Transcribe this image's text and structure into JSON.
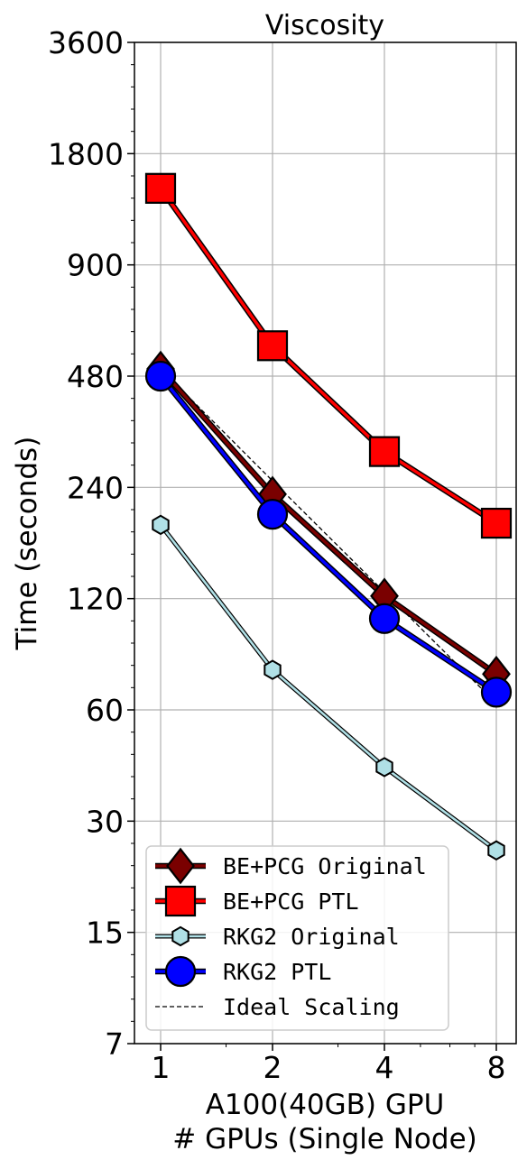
{
  "chart_data": {
    "type": "line",
    "title": "Viscosity",
    "xlabel_lines": [
      "A100(40GB) GPU",
      "# GPUs (Single Node)"
    ],
    "ylabel": "Time (seconds)",
    "x": [
      1,
      2,
      4,
      8
    ],
    "x_tick_labels": [
      "1",
      "2",
      "4",
      "8"
    ],
    "x_scale": "log2",
    "y_scale": "log",
    "y_ticks": [
      7,
      15,
      30,
      60,
      120,
      240,
      480,
      900,
      1800,
      3600
    ],
    "y_tick_labels": [
      "7",
      "15",
      "30",
      "60",
      "120",
      "240",
      "480",
      "900",
      "1800",
      "3600"
    ],
    "ylim": [
      7,
      3600
    ],
    "grid": true,
    "legend_position": "lower-left",
    "series": [
      {
        "name": "BE+PCG Original",
        "values": [
          500,
          230,
          122,
          75
        ],
        "color": "#7a0000",
        "marker": "diamond"
      },
      {
        "name": "BE+PCG PTL",
        "values": [
          1450,
          570,
          300,
          192
        ],
        "color": "#ff0000",
        "marker": "square"
      },
      {
        "name": "RKG2 Original",
        "values": [
          190,
          77,
          42,
          25
        ],
        "color": "#b0e0e6",
        "marker": "hexagon"
      },
      {
        "name": "RKG2 PTL",
        "values": [
          480,
          203,
          106,
          67
        ],
        "color": "#0000ff",
        "marker": "circle"
      },
      {
        "name": "Ideal Scaling",
        "values": [
          500,
          250,
          125,
          62.5
        ],
        "color": "#000000",
        "marker": "none",
        "dashed": true
      }
    ]
  }
}
